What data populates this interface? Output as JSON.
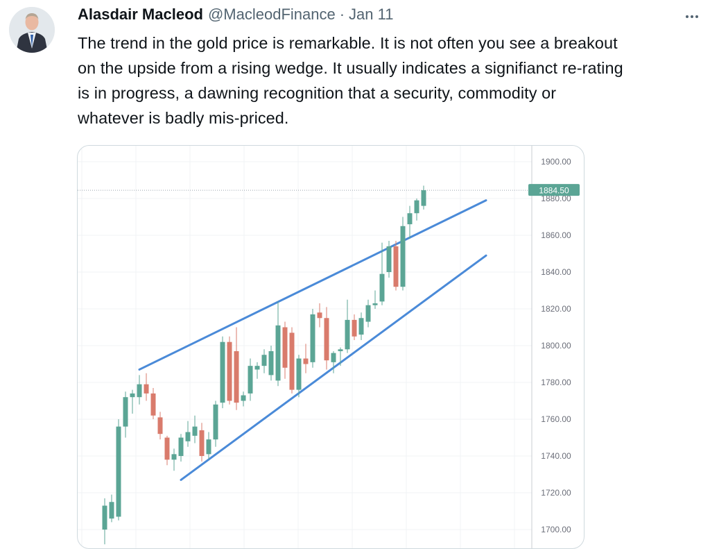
{
  "author": {
    "name": "Alasdair Macleod",
    "handle": "@MacleodFinance",
    "separator": "·",
    "date": "Jan 11"
  },
  "icons": {
    "more": "more-horizontal-icon",
    "avatar": "profile-photo"
  },
  "tweet": {
    "lines": [
      "The trend in the gold price is remarkable. It is not often you see a breakout",
      "on the upside from a rising wedge. It usually indicates a signifianct re-rating",
      "is in progress, a dawning recognition that a security, commodity or",
      "whatever is badly mis-priced."
    ]
  },
  "colors": {
    "up": "#5ba595",
    "down": "#d97b6c",
    "trendline": "#4a8ad8",
    "price_label_bg": "#5ba595"
  },
  "chart_data": {
    "type": "candlestick",
    "y_axis_position": "right",
    "ylim": [
      1694,
      1908
    ],
    "y_ticks": [
      "1900.00",
      "1880.00",
      "1860.00",
      "1840.00",
      "1820.00",
      "1800.00",
      "1780.00",
      "1760.00",
      "1740.00",
      "1720.00",
      "1700.00"
    ],
    "last_price_label": "1884.50",
    "candles": [
      {
        "o": 1700,
        "h": 1717,
        "l": 1692,
        "c": 1713
      },
      {
        "o": 1706,
        "h": 1719,
        "l": 1704,
        "c": 1715
      },
      {
        "o": 1707,
        "h": 1760,
        "l": 1705,
        "c": 1756
      },
      {
        "o": 1756,
        "h": 1775,
        "l": 1750,
        "c": 1772
      },
      {
        "o": 1772,
        "h": 1776,
        "l": 1763,
        "c": 1774
      },
      {
        "o": 1772,
        "h": 1784,
        "l": 1768,
        "c": 1779
      },
      {
        "o": 1779,
        "h": 1785,
        "l": 1770,
        "c": 1774
      },
      {
        "o": 1774,
        "h": 1777,
        "l": 1760,
        "c": 1762
      },
      {
        "o": 1761,
        "h": 1764,
        "l": 1749,
        "c": 1752
      },
      {
        "o": 1750,
        "h": 1751,
        "l": 1735,
        "c": 1738
      },
      {
        "o": 1738,
        "h": 1744,
        "l": 1732,
        "c": 1741
      },
      {
        "o": 1740,
        "h": 1752,
        "l": 1737,
        "c": 1750
      },
      {
        "o": 1748,
        "h": 1759,
        "l": 1745,
        "c": 1753
      },
      {
        "o": 1751,
        "h": 1762,
        "l": 1747,
        "c": 1756
      },
      {
        "o": 1754,
        "h": 1758,
        "l": 1737,
        "c": 1740
      },
      {
        "o": 1741,
        "h": 1753,
        "l": 1738,
        "c": 1749
      },
      {
        "o": 1749,
        "h": 1770,
        "l": 1745,
        "c": 1768
      },
      {
        "o": 1769,
        "h": 1805,
        "l": 1766,
        "c": 1802
      },
      {
        "o": 1802,
        "h": 1805,
        "l": 1768,
        "c": 1770
      },
      {
        "o": 1797,
        "h": 1810,
        "l": 1765,
        "c": 1769
      },
      {
        "o": 1770,
        "h": 1775,
        "l": 1767,
        "c": 1773
      },
      {
        "o": 1774,
        "h": 1793,
        "l": 1770,
        "c": 1789
      },
      {
        "o": 1787,
        "h": 1791,
        "l": 1782,
        "c": 1789
      },
      {
        "o": 1789,
        "h": 1798,
        "l": 1785,
        "c": 1795
      },
      {
        "o": 1784,
        "h": 1800,
        "l": 1781,
        "c": 1797
      },
      {
        "o": 1781,
        "h": 1824,
        "l": 1778,
        "c": 1811
      },
      {
        "o": 1810,
        "h": 1813,
        "l": 1782,
        "c": 1788
      },
      {
        "o": 1807,
        "h": 1810,
        "l": 1774,
        "c": 1776
      },
      {
        "o": 1776,
        "h": 1795,
        "l": 1772,
        "c": 1793
      },
      {
        "o": 1793,
        "h": 1801,
        "l": 1785,
        "c": 1790
      },
      {
        "o": 1791,
        "h": 1820,
        "l": 1788,
        "c": 1817
      },
      {
        "o": 1818,
        "h": 1823,
        "l": 1810,
        "c": 1815
      },
      {
        "o": 1815,
        "h": 1821,
        "l": 1787,
        "c": 1792
      },
      {
        "o": 1791,
        "h": 1797,
        "l": 1785,
        "c": 1796
      },
      {
        "o": 1797,
        "h": 1799,
        "l": 1789,
        "c": 1798
      },
      {
        "o": 1798,
        "h": 1825,
        "l": 1796,
        "c": 1814
      },
      {
        "o": 1814,
        "h": 1817,
        "l": 1803,
        "c": 1805
      },
      {
        "o": 1806,
        "h": 1818,
        "l": 1803,
        "c": 1815
      },
      {
        "o": 1813,
        "h": 1825,
        "l": 1810,
        "c": 1822
      },
      {
        "o": 1822,
        "h": 1830,
        "l": 1820,
        "c": 1823
      },
      {
        "o": 1824,
        "h": 1856,
        "l": 1822,
        "c": 1839
      },
      {
        "o": 1840,
        "h": 1857,
        "l": 1837,
        "c": 1854
      },
      {
        "o": 1854,
        "h": 1857,
        "l": 1830,
        "c": 1832
      },
      {
        "o": 1832,
        "h": 1870,
        "l": 1830,
        "c": 1865
      },
      {
        "o": 1866,
        "h": 1876,
        "l": 1858,
        "c": 1872
      },
      {
        "o": 1872,
        "h": 1880,
        "l": 1868,
        "c": 1879
      },
      {
        "o": 1876,
        "h": 1887,
        "l": 1874,
        "c": 1884.5
      }
    ],
    "trendlines": [
      {
        "name": "upper",
        "from": {
          "candle": 5,
          "price": 1787
        },
        "to": {
          "candle": 55,
          "price": 1879
        }
      },
      {
        "name": "lower",
        "from": {
          "candle": 11,
          "price": 1727
        },
        "to": {
          "candle": 55,
          "price": 1849
        }
      }
    ]
  }
}
